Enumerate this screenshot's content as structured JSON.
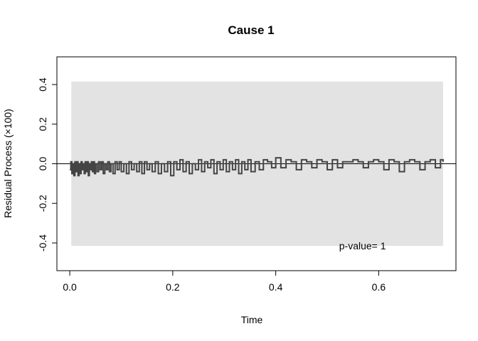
{
  "chart_data": {
    "type": "line",
    "title": "Cause 1",
    "xlabel": "Time",
    "ylabel": "Residual Process (×100)",
    "xlim": [
      -0.025,
      0.75
    ],
    "ylim": [
      -0.54,
      0.54
    ],
    "x_ticks": [
      0.0,
      0.2,
      0.4,
      0.6
    ],
    "x_tick_labels": [
      "0.0",
      "0.2",
      "0.4",
      "0.6"
    ],
    "y_ticks": [
      -0.4,
      -0.2,
      0.0,
      0.2,
      0.4
    ],
    "y_tick_labels": [
      "-0.4",
      "-0.2",
      "0.0",
      "0.2",
      "0.4"
    ],
    "band": {
      "x_start": 0.003,
      "x_end": 0.725,
      "lower": -0.415,
      "upper": 0.415,
      "color": "#e3e3e3"
    },
    "reference_line": 0.0,
    "annotation": {
      "text": "p-value= 1",
      "x": 0.61,
      "y": -0.415
    },
    "grid": false,
    "series": [
      {
        "color": "#444444",
        "x": [
          0.0,
          0.002,
          0.004,
          0.006,
          0.008,
          0.01,
          0.012,
          0.014,
          0.016,
          0.018,
          0.02,
          0.022,
          0.024,
          0.026,
          0.028,
          0.03,
          0.032,
          0.034,
          0.036,
          0.038,
          0.04,
          0.042,
          0.044,
          0.046,
          0.048,
          0.05,
          0.053,
          0.056,
          0.059,
          0.062,
          0.065,
          0.068,
          0.071,
          0.074,
          0.077,
          0.08,
          0.084,
          0.088,
          0.092,
          0.096,
          0.1,
          0.105,
          0.11,
          0.115,
          0.12,
          0.125,
          0.13,
          0.135,
          0.14,
          0.145,
          0.15,
          0.155,
          0.16,
          0.166,
          0.172,
          0.178,
          0.184,
          0.19,
          0.196,
          0.202,
          0.208,
          0.214,
          0.22,
          0.226,
          0.232,
          0.238,
          0.244,
          0.25,
          0.256,
          0.262,
          0.268,
          0.274,
          0.28,
          0.286,
          0.292,
          0.298,
          0.304,
          0.31,
          0.316,
          0.322,
          0.328,
          0.334,
          0.34,
          0.346,
          0.352,
          0.36,
          0.368,
          0.376,
          0.384,
          0.392,
          0.4,
          0.41,
          0.42,
          0.43,
          0.44,
          0.45,
          0.46,
          0.47,
          0.48,
          0.49,
          0.5,
          0.51,
          0.52,
          0.53,
          0.54,
          0.55,
          0.56,
          0.57,
          0.58,
          0.59,
          0.6,
          0.61,
          0.62,
          0.63,
          0.64,
          0.65,
          0.66,
          0.67,
          0.68,
          0.69,
          0.7,
          0.71,
          0.72,
          0.725
        ],
        "y": [
          -0.03,
          0.01,
          -0.05,
          0.0,
          -0.06,
          0.01,
          -0.04,
          0.01,
          -0.06,
          0.0,
          -0.05,
          0.01,
          -0.03,
          0.0,
          -0.05,
          0.01,
          -0.04,
          0.01,
          -0.06,
          0.0,
          -0.03,
          0.01,
          -0.04,
          0.01,
          -0.05,
          0.0,
          -0.04,
          0.01,
          -0.03,
          0.01,
          -0.05,
          0.0,
          -0.03,
          0.01,
          -0.04,
          0.0,
          -0.05,
          0.01,
          -0.03,
          0.01,
          -0.04,
          0.0,
          -0.05,
          0.01,
          -0.03,
          0.0,
          -0.04,
          0.01,
          -0.05,
          0.01,
          -0.03,
          0.0,
          -0.04,
          0.01,
          -0.05,
          0.0,
          -0.04,
          0.01,
          -0.06,
          0.01,
          -0.03,
          0.02,
          -0.04,
          0.01,
          -0.05,
          0.0,
          -0.03,
          0.02,
          -0.04,
          0.01,
          -0.02,
          0.02,
          -0.05,
          0.01,
          -0.03,
          0.02,
          -0.04,
          0.01,
          -0.03,
          0.02,
          -0.05,
          0.01,
          -0.03,
          0.02,
          -0.04,
          0.01,
          -0.03,
          0.02,
          0.01,
          -0.02,
          0.03,
          -0.02,
          0.02,
          0.01,
          -0.03,
          0.02,
          0.01,
          -0.02,
          0.02,
          0.01,
          -0.03,
          0.02,
          -0.02,
          0.01,
          0.01,
          0.02,
          0.01,
          -0.02,
          0.01,
          0.02,
          0.01,
          -0.03,
          0.02,
          0.01,
          -0.04,
          0.01,
          0.02,
          0.01,
          -0.03,
          0.01,
          0.02,
          -0.02,
          0.02,
          0.01
        ]
      }
    ]
  }
}
